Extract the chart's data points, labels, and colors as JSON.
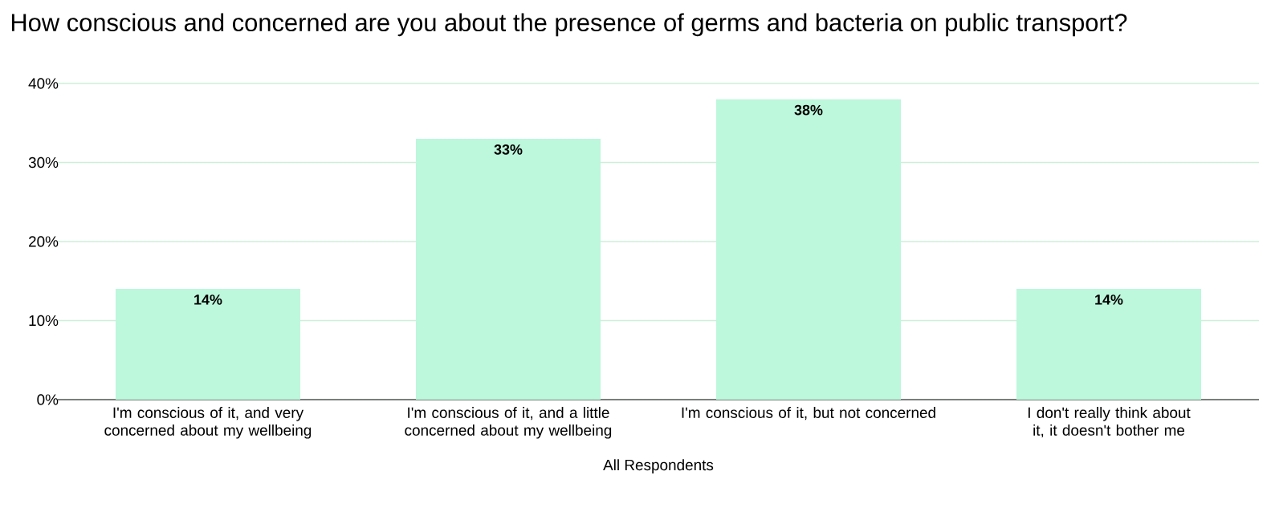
{
  "chart_data": {
    "type": "bar",
    "title": "How conscious and concerned are you about the presence of germs and bacteria on public transport?",
    "xlabel": "All Respondents",
    "categories": [
      "I'm conscious of it, and very concerned about my wellbeing",
      "I'm conscious of it, and a little concerned about my wellbeing",
      "I'm conscious of it, but not concerned",
      "I don't really think about it, it doesn't bother me"
    ],
    "values": [
      14,
      33,
      38,
      14
    ],
    "value_labels": [
      "14%",
      "33%",
      "38%",
      "14%"
    ],
    "color": "#bdf7dc",
    "ylim": [
      0,
      40
    ],
    "yticks": [
      {
        "value": 0,
        "label": "0%"
      },
      {
        "value": 10,
        "label": "10%"
      },
      {
        "value": 20,
        "label": "20%"
      },
      {
        "value": 30,
        "label": "30%"
      },
      {
        "value": 40,
        "label": "40%"
      }
    ],
    "grid": "y"
  }
}
